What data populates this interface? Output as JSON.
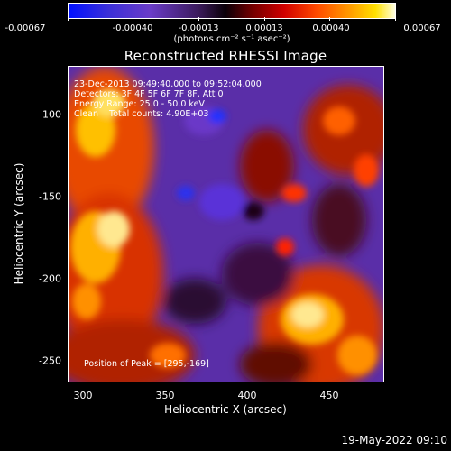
{
  "colorbar": {
    "ticks": [
      "-0.00067",
      "-0.00040",
      "-0.00013",
      "0.00013",
      "0.00040",
      "0.00067"
    ],
    "units": "(photons cm⁻² s⁻¹ asec⁻²)"
  },
  "plot": {
    "title": "Reconstructed RHESSI Image",
    "info_lines": [
      "23-Dec-2013 09:49:40.000 to 09:52:04.000",
      "Detectors: 3F 4F 5F 6F 7F 8F, Att 0",
      "Energy Range: 25.0 - 50.0 keV",
      "Clean    Total counts: 4.90E+03"
    ],
    "peak_text": "Position of Peak = [295,-169]",
    "xlabel": "Heliocentric X (arcsec)",
    "ylabel": "Heliocentric Y (arcsec)",
    "xticks": [
      "300",
      "350",
      "400",
      "450"
    ],
    "yticks": [
      "-100",
      "-150",
      "-200",
      "-250"
    ]
  },
  "timestamp": "19-May-2022 09:10",
  "colors": {
    "background": "#000000",
    "foreground": "#ffffff",
    "colormap": [
      "#0000ff",
      "#4b2ca8",
      "#6e3cd0",
      "#300020",
      "#a00000",
      "#ff2a00",
      "#ff8a00",
      "#ffe000",
      "#ffffc0"
    ]
  }
}
